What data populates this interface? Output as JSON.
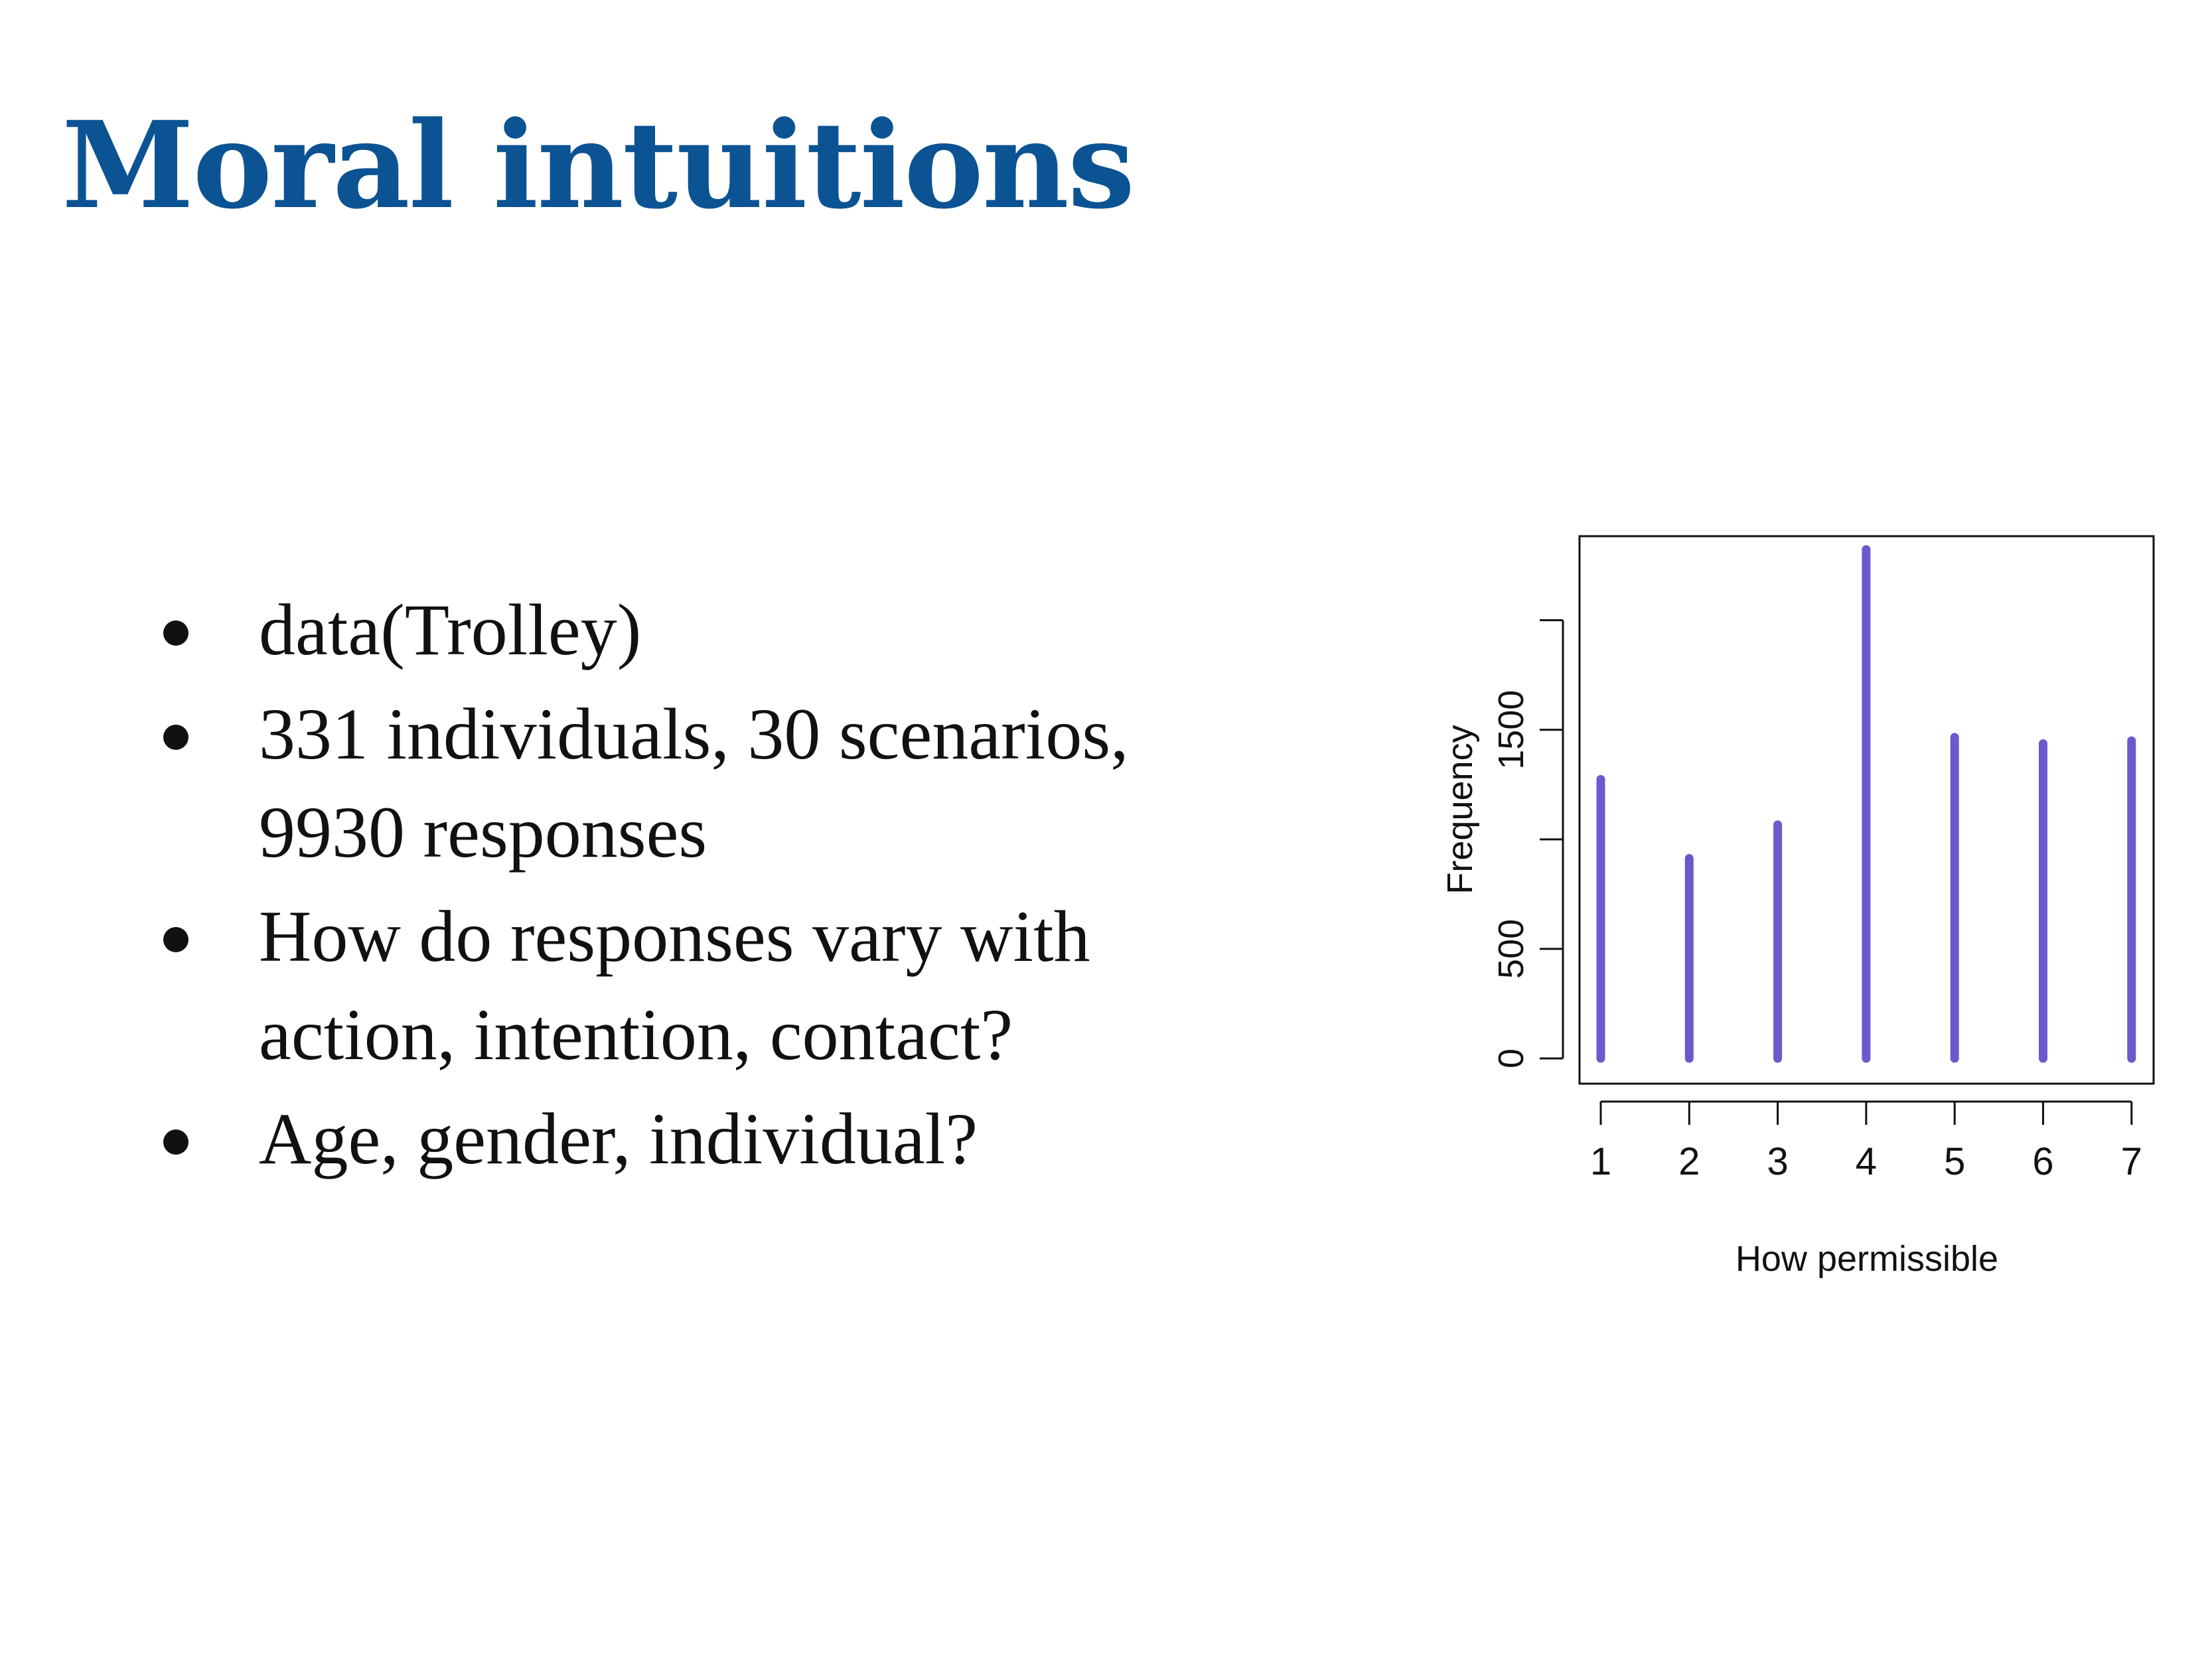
{
  "slide": {
    "title": "Moral intuitions",
    "title_color": "#0b5393"
  },
  "bullets": [
    {
      "lines": [
        "data(Trolley)"
      ]
    },
    {
      "lines": [
        "331 individuals, 30 scenarios,",
        "9930 responses"
      ]
    },
    {
      "lines": [
        "How do responses vary with",
        "action, intention, contact?"
      ]
    },
    {
      "lines": [
        "Age, gender, individual?"
      ]
    }
  ],
  "chart_data": {
    "type": "bar",
    "categories": [
      "1",
      "2",
      "3",
      "4",
      "5",
      "6",
      "7"
    ],
    "values": [
      1274,
      913,
      1067,
      2323,
      1466,
      1437,
      1450
    ],
    "bar_color": "#6a5acd",
    "xlabel": "How permissible",
    "ylabel": "Frequency",
    "ylim": [
      0,
      2323
    ],
    "yticks": [
      0,
      500,
      1000,
      1500,
      2000
    ],
    "ytick_labels": [
      "0",
      "500",
      "",
      "1500",
      ""
    ],
    "grid": false,
    "legend": "none"
  }
}
